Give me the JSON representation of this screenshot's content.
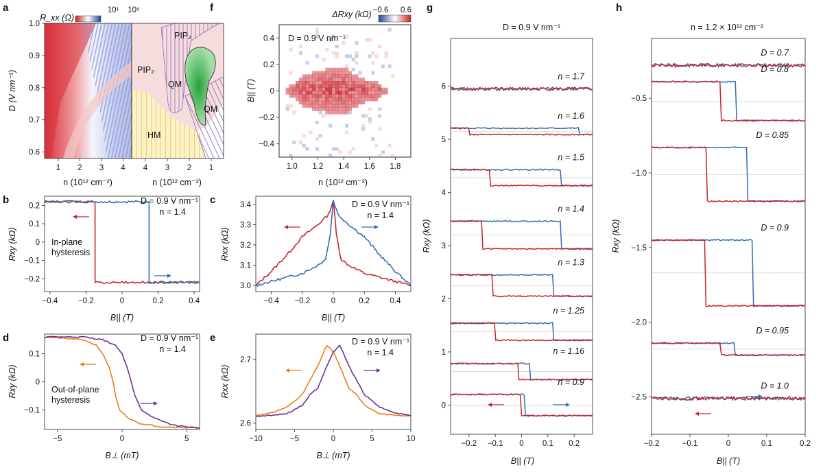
{
  "colors": {
    "red": "#c8232c",
    "blue": "#2f6db5",
    "orange": "#f07a12",
    "purple": "#6a2f9a",
    "green": "#2c9b3c",
    "pip": "#f6dcdc",
    "hm": "#fbf1c8",
    "qm": "#7b5aa6"
  },
  "panel_labels": {
    "a": "a",
    "b": "b",
    "c": "c",
    "d": "d",
    "e": "e",
    "f": "f",
    "g": "g",
    "h": "h"
  },
  "chart_data": [
    {
      "id": "a",
      "type": "heatmap",
      "title": "",
      "colorbar_label": "R_xx (Ω)",
      "colorbar_ticks": [
        "10¹",
        "10⁵"
      ],
      "ylabel": "D (V nm⁻¹)",
      "xlabel_left": "n (10¹² cm⁻²)",
      "xlabel_right": "n (10¹² cm⁻²)",
      "ylim": [
        0.58,
        1.0
      ],
      "yticks": [
        "0.6",
        "0.7",
        "0.8",
        "0.9",
        "1.0"
      ],
      "xticks_left": [
        "1",
        "2",
        "3",
        "4"
      ],
      "xticks_right": [
        "4",
        "3",
        "2",
        "1"
      ],
      "regions": [
        "PIP₂",
        "PIP₂",
        "QM",
        "QM",
        "HM"
      ]
    },
    {
      "id": "b",
      "type": "line",
      "xlabel": "B|| (T)",
      "ylabel": "Rxy (kΩ)",
      "xlim": [
        -0.43,
        0.43
      ],
      "ylim": [
        -0.27,
        0.25
      ],
      "xticks": [
        "−0.4",
        "−0.2",
        "0",
        "0.2",
        "0.4"
      ],
      "yticks": [
        "0.2",
        "0.1",
        "0",
        "−0.1",
        "−0.2"
      ],
      "annotations": [
        "D = 0.9 V nm⁻¹",
        "n = 1.4",
        "In-plane",
        "hysteresis"
      ],
      "series": [
        {
          "direction": "sweep down",
          "color": "red",
          "x": [
            0.43,
            -0.15,
            -0.15,
            -0.43
          ],
          "y": [
            -0.22,
            -0.22,
            0.22,
            0.22
          ]
        },
        {
          "direction": "sweep up",
          "color": "blue",
          "x": [
            -0.43,
            0.15,
            0.15,
            0.43
          ],
          "y": [
            0.22,
            0.22,
            -0.22,
            -0.22
          ]
        }
      ]
    },
    {
      "id": "c",
      "type": "line",
      "xlabel": "B|| (T)",
      "ylabel": "Rxx (kΩ)",
      "xlim": [
        -0.5,
        0.5
      ],
      "ylim": [
        2.97,
        3.44
      ],
      "xticks": [
        "−0.4",
        "−0.2",
        "0",
        "0.2",
        "0.4"
      ],
      "yticks": [
        "3.4",
        "3.3",
        "3.2",
        "3.1",
        "3.0"
      ],
      "annotations": [
        "D = 0.9 V nm⁻¹",
        "n = 1.4"
      ],
      "series": [
        {
          "direction": "sweep down",
          "color": "red",
          "x": [
            -0.5,
            -0.4,
            -0.3,
            -0.2,
            -0.1,
            -0.03,
            0,
            0.02,
            0.05,
            0.1,
            0.2,
            0.3,
            0.4,
            0.5
          ],
          "y": [
            3.0,
            3.07,
            3.15,
            3.24,
            3.3,
            3.35,
            3.42,
            3.25,
            3.13,
            3.1,
            3.06,
            3.04,
            3.02,
            3.0
          ]
        },
        {
          "direction": "sweep up",
          "color": "blue",
          "x": [
            -0.5,
            -0.4,
            -0.3,
            -0.2,
            -0.1,
            -0.05,
            -0.02,
            0,
            0.03,
            0.1,
            0.2,
            0.3,
            0.4,
            0.5
          ],
          "y": [
            3.0,
            3.02,
            3.04,
            3.06,
            3.1,
            3.13,
            3.25,
            3.42,
            3.35,
            3.3,
            3.24,
            3.15,
            3.07,
            3.0
          ]
        }
      ]
    },
    {
      "id": "d",
      "type": "line",
      "xlabel": "B⊥ (mT)",
      "ylabel": "Rxy (kΩ)",
      "xlim": [
        -6,
        6
      ],
      "ylim": [
        -0.17,
        0.17
      ],
      "xticks": [
        "−5",
        "0",
        "5"
      ],
      "yticks": [
        "0.1",
        "0",
        "−0.1"
      ],
      "annotations": [
        "D = 0.9 V nm⁻¹",
        "n = 1.4",
        "Out-of-plane",
        "hysteresis"
      ],
      "series": [
        {
          "direction": "sweep down",
          "color": "orange",
          "x": [
            -6,
            -3,
            -2,
            -1.5,
            -1,
            -0.7,
            -0.5,
            -0.2,
            0.5,
            1.5,
            3,
            6
          ],
          "y": [
            0.16,
            0.15,
            0.13,
            0.1,
            0.05,
            0.0,
            -0.05,
            -0.1,
            -0.13,
            -0.15,
            -0.16,
            -0.165
          ]
        },
        {
          "direction": "sweep up",
          "color": "purple",
          "x": [
            -6,
            -3,
            -1.5,
            -0.5,
            0,
            0.4,
            0.7,
            1,
            1.5,
            2.5,
            4,
            6
          ],
          "y": [
            0.16,
            0.16,
            0.15,
            0.13,
            0.1,
            0.05,
            0.0,
            -0.05,
            -0.1,
            -0.13,
            -0.155,
            -0.165
          ]
        }
      ]
    },
    {
      "id": "e",
      "type": "line",
      "xlabel": "B⊥ (mT)",
      "ylabel": "Rxx (kΩ)",
      "xlim": [
        -10,
        10
      ],
      "ylim": [
        2.59,
        2.74
      ],
      "xticks": [
        "−10",
        "−5",
        "0",
        "5",
        "10"
      ],
      "yticks": [
        "2.7",
        "2.6"
      ],
      "annotations": [
        "D = 0.9 V nm⁻¹",
        "n = 1.4"
      ],
      "series": [
        {
          "direction": "sweep down",
          "color": "orange",
          "x": [
            -10,
            -8,
            -6,
            -4,
            -2,
            -1,
            -0.8,
            0,
            1,
            2,
            3,
            4,
            6,
            8,
            10
          ],
          "y": [
            2.612,
            2.616,
            2.625,
            2.645,
            2.69,
            2.718,
            2.722,
            2.712,
            2.685,
            2.655,
            2.645,
            2.628,
            2.615,
            2.612,
            2.611
          ]
        },
        {
          "direction": "sweep up",
          "color": "purple",
          "x": [
            -10,
            -8,
            -6,
            -4,
            -3,
            -2,
            -1,
            0,
            0.8,
            1,
            2,
            4,
            6,
            8,
            10
          ],
          "y": [
            2.611,
            2.612,
            2.615,
            2.628,
            2.645,
            2.655,
            2.685,
            2.712,
            2.722,
            2.718,
            2.69,
            2.645,
            2.625,
            2.616,
            2.612
          ]
        }
      ]
    },
    {
      "id": "f",
      "type": "heatmap",
      "colorbar_label": "ΔRxy (kΩ)",
      "colorbar_ticks": [
        "−0.6",
        "0.6"
      ],
      "xlabel": "n (10¹² cm⁻²)",
      "ylabel": "B|| (T)",
      "xlim": [
        0.9,
        1.92
      ],
      "ylim": [
        -0.5,
        0.5
      ],
      "xticks": [
        "1.0",
        "1.2",
        "1.4",
        "1.6",
        "1.8"
      ],
      "yticks": [
        "0.4",
        "0.2",
        "0",
        "−0.2",
        "−0.4"
      ],
      "annotations": [
        "D = 0.9 V nm⁻¹"
      ],
      "half_width_T": [
        [
          0.95,
          0.0
        ],
        [
          1.0,
          0.05
        ],
        [
          1.1,
          0.12
        ],
        [
          1.2,
          0.15
        ],
        [
          1.3,
          0.17
        ],
        [
          1.4,
          0.18
        ],
        [
          1.45,
          0.15
        ],
        [
          1.5,
          0.12
        ],
        [
          1.55,
          0.1
        ],
        [
          1.6,
          0.07
        ],
        [
          1.65,
          0.08
        ],
        [
          1.7,
          0.02
        ],
        [
          1.8,
          0.0
        ]
      ]
    },
    {
      "id": "g",
      "type": "line",
      "title": "D = 0.9 V nm⁻¹",
      "xlabel": "B|| (T)",
      "ylabel": "Rxy (kΩ)",
      "xlim": [
        -0.27,
        0.27
      ],
      "ylim": [
        -0.55,
        6.9
      ],
      "xticks": [
        "−0.2",
        "−0.1",
        "0",
        "0.1",
        "0.2"
      ],
      "yticks": [
        "0",
        "1",
        "2",
        "3",
        "4",
        "5",
        "6"
      ],
      "curves": [
        {
          "label": "n = 1.7",
          "offset": 5.95,
          "amp": 0.0,
          "down": 0.0,
          "up": 0.0
        },
        {
          "label": "n = 1.6",
          "offset": 5.15,
          "amp": 0.06,
          "down": -0.2,
          "up": 0.22
        },
        {
          "label": "n = 1.5",
          "offset": 4.28,
          "amp": 0.15,
          "down": -0.12,
          "up": 0.15
        },
        {
          "label": "n = 1.4",
          "offset": 3.2,
          "amp": 0.26,
          "down": -0.15,
          "up": 0.15
        },
        {
          "label": "n = 1.3",
          "offset": 2.25,
          "amp": 0.2,
          "down": -0.11,
          "up": 0.12
        },
        {
          "label": "n = 1.25",
          "offset": 1.38,
          "amp": 0.16,
          "down": -0.1,
          "up": 0.12
        },
        {
          "label": "n = 1.16",
          "offset": 0.63,
          "amp": 0.15,
          "down": -0.01,
          "up": 0.03
        },
        {
          "label": "n = 0.9",
          "offset": 0.0,
          "amp": 0.2,
          "down": 0.0,
          "up": 0.01
        }
      ]
    },
    {
      "id": "h",
      "type": "line",
      "title": "n = 1.2 × 10¹² cm⁻²",
      "xlabel": "B|| (T)",
      "ylabel": "Rxy (kΩ)",
      "xlim": [
        -0.2,
        0.2
      ],
      "ylim": [
        -2.75,
        -0.1
      ],
      "xticks": [
        "−0.2",
        "−0.1",
        "0",
        "0.1",
        "0.2"
      ],
      "yticks": [
        "−0.5",
        "−1.0",
        "−1.5",
        "−2.0",
        "−2.5"
      ],
      "curves": [
        {
          "label": "D = 0.7",
          "offset": -0.28,
          "amp": 0.0,
          "down": 0.0,
          "up": 0.0
        },
        {
          "label": "D = 0.8",
          "offset": -0.52,
          "amp": 0.13,
          "down": -0.02,
          "up": 0.02
        },
        {
          "label": "D = 0.85",
          "offset": -1.01,
          "amp": 0.18,
          "down": -0.055,
          "up": 0.05
        },
        {
          "label": "D = 0.9",
          "offset": -1.67,
          "amp": 0.22,
          "down": -0.06,
          "up": 0.065
        },
        {
          "label": "D = 0.95",
          "offset": -2.18,
          "amp": 0.04,
          "down": -0.02,
          "up": 0.015
        },
        {
          "label": "D = 1.0",
          "offset": -2.51,
          "amp": 0.0,
          "down": 0.0,
          "up": 0.0
        }
      ]
    }
  ]
}
